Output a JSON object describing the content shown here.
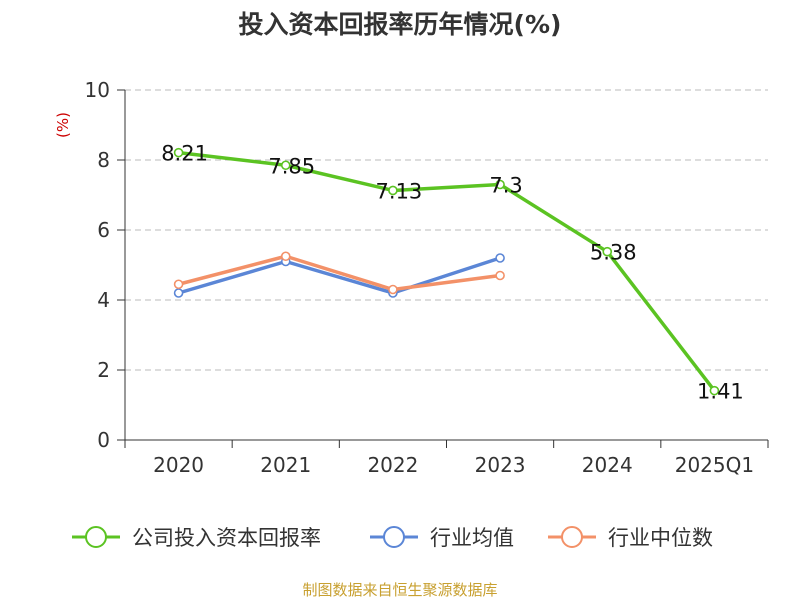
{
  "chart_data": {
    "type": "line",
    "title": "投入资本回报率历年情况(%)",
    "ylabel": "(%)",
    "categories": [
      "2020",
      "2021",
      "2022",
      "2023",
      "2024",
      "2025Q1"
    ],
    "ylim": [
      0,
      10
    ],
    "yticks": [
      0,
      2,
      4,
      6,
      8,
      10
    ],
    "grid": true,
    "legend_position": "bottom",
    "series": [
      {
        "name": "公司投入资本回报率",
        "color": "#5bc322",
        "values": [
          8.21,
          7.85,
          7.13,
          7.3,
          5.38,
          1.41
        ],
        "labels": [
          "8.21",
          "7.85",
          "7.13",
          "7.3",
          "5.38",
          "1.41"
        ]
      },
      {
        "name": "行业均值",
        "color": "#5b86d6",
        "values": [
          4.2,
          5.1,
          4.2,
          5.2,
          null,
          null
        ]
      },
      {
        "name": "行业中位数",
        "color": "#f39168",
        "values": [
          4.45,
          5.25,
          4.3,
          4.7,
          null,
          null
        ]
      }
    ]
  },
  "source": "制图数据来自恒生聚源数据库"
}
